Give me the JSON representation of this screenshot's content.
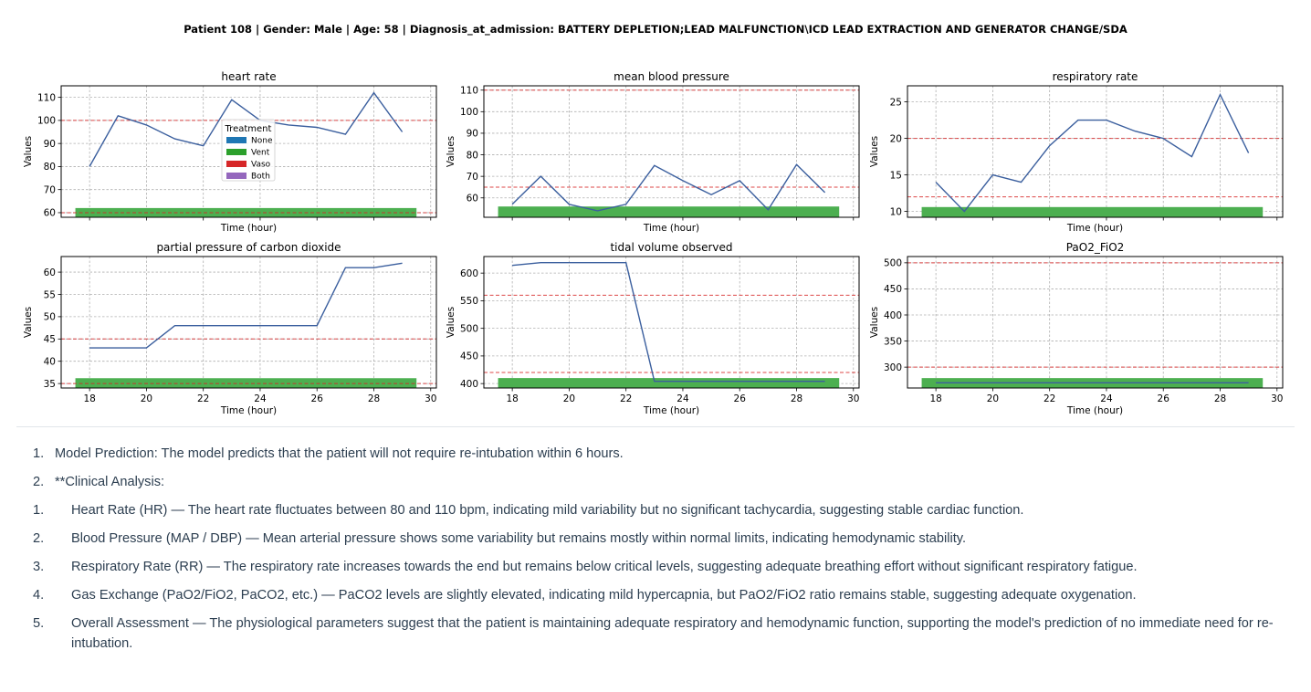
{
  "figure": {
    "title": "Patient 108 | Gender: Male | Age: 58 | Diagnosis_at_admission: BATTERY DEPLETION;LEAD MALFUNCTION\\ICD LEAD EXTRACTION AND GENERATOR CHANGE/SDA",
    "legend": {
      "title": "Treatment",
      "items": [
        {
          "label": "None",
          "color": "#1f77b4"
        },
        {
          "label": "Vent",
          "color": "#2ca02c"
        },
        {
          "label": "Vaso",
          "color": "#d62728"
        },
        {
          "label": "Both",
          "color": "#9467bd"
        }
      ]
    },
    "colors": {
      "line": "#3b5f9e",
      "threshold": "#d62728",
      "vent_band": "#4caf50"
    }
  },
  "chart_data": [
    {
      "type": "line",
      "title": "heart rate",
      "xlabel": "Time (hour)",
      "ylabel": "Values",
      "xlim": [
        17,
        30.2
      ],
      "ylim": [
        58,
        115
      ],
      "xticks": [
        18,
        20,
        22,
        24,
        26,
        28,
        30
      ],
      "yticks": [
        60,
        70,
        80,
        90,
        100,
        110
      ],
      "show_xticklabels": false,
      "x": [
        18,
        19,
        20,
        21,
        22,
        23,
        24,
        25,
        26,
        27,
        28,
        29
      ],
      "series": [
        {
          "values": [
            80,
            102,
            98,
            92,
            89,
            109,
            100,
            98,
            97,
            94,
            112,
            95
          ]
        }
      ],
      "thresholds": [
        60,
        100
      ],
      "treatment_band": {
        "treatment": "Vent",
        "x": [
          17.5,
          29.5
        ],
        "y": [
          58,
          62
        ]
      },
      "legend": true,
      "grid": true
    },
    {
      "type": "line",
      "title": "mean blood pressure",
      "xlabel": "Time (hour)",
      "ylabel": "Values",
      "xlim": [
        17,
        30.2
      ],
      "ylim": [
        51,
        112
      ],
      "xticks": [
        18,
        20,
        22,
        24,
        26,
        28,
        30
      ],
      "yticks": [
        60,
        70,
        80,
        90,
        100,
        110
      ],
      "show_xticklabels": false,
      "x": [
        18,
        19,
        20,
        21,
        22,
        23,
        24,
        25,
        26,
        27,
        28,
        29
      ],
      "series": [
        {
          "values": [
            57,
            70,
            57,
            54,
            57,
            75,
            68,
            61.5,
            68,
            54.5,
            75.5,
            62.5
          ]
        }
      ],
      "thresholds": [
        65,
        110
      ],
      "treatment_band": {
        "treatment": "Vent",
        "x": [
          17.5,
          29.5
        ],
        "y": [
          51,
          56
        ]
      },
      "legend": false,
      "grid": true
    },
    {
      "type": "line",
      "title": "respiratory rate",
      "xlabel": "Time (hour)",
      "ylabel": "Values",
      "xlim": [
        17,
        30.2
      ],
      "ylim": [
        9.2,
        27.2
      ],
      "xticks": [
        18,
        20,
        22,
        24,
        26,
        28,
        30
      ],
      "yticks": [
        10,
        15,
        20,
        25
      ],
      "show_xticklabels": false,
      "x": [
        18,
        19,
        20,
        21,
        22,
        23,
        24,
        25,
        26,
        27,
        28,
        29
      ],
      "series": [
        {
          "values": [
            14,
            10,
            15,
            14,
            19,
            22.5,
            22.5,
            21,
            20,
            17.5,
            26,
            18
          ]
        }
      ],
      "thresholds": [
        12,
        20
      ],
      "treatment_band": {
        "treatment": "Vent",
        "x": [
          17.5,
          29.5
        ],
        "y": [
          9.2,
          10.6
        ]
      },
      "legend": false,
      "grid": true
    },
    {
      "type": "line",
      "title": "partial pressure of carbon dioxide",
      "xlabel": "Time (hour)",
      "ylabel": "Values",
      "xlim": [
        17,
        30.2
      ],
      "ylim": [
        34,
        63.5
      ],
      "xticks": [
        18,
        20,
        22,
        24,
        26,
        28,
        30
      ],
      "yticks": [
        35,
        40,
        45,
        50,
        55,
        60
      ],
      "show_xticklabels": true,
      "x": [
        18,
        20,
        21,
        26,
        27,
        28,
        29
      ],
      "series": [
        {
          "values": [
            43,
            43,
            48,
            48,
            61,
            61,
            62
          ]
        }
      ],
      "thresholds": [
        35,
        45
      ],
      "treatment_band": {
        "treatment": "Vent",
        "x": [
          17.5,
          29.5
        ],
        "y": [
          34,
          36.2
        ]
      },
      "legend": false,
      "grid": true
    },
    {
      "type": "line",
      "title": "tidal volume observed",
      "xlabel": "Time (hour)",
      "ylabel": "Values",
      "xlim": [
        17,
        30.2
      ],
      "ylim": [
        392,
        630
      ],
      "xticks": [
        18,
        20,
        22,
        24,
        26,
        28,
        30
      ],
      "yticks": [
        400,
        450,
        500,
        550,
        600
      ],
      "show_xticklabels": true,
      "x": [
        18,
        19,
        20,
        21,
        22,
        23,
        24,
        25,
        26,
        27,
        28,
        29
      ],
      "series": [
        {
          "values": [
            614,
            619,
            619,
            619,
            619,
            404,
            404,
            404,
            404,
            404,
            404,
            404
          ]
        }
      ],
      "thresholds": [
        420,
        560
      ],
      "treatment_band": {
        "treatment": "Vent",
        "x": [
          17.5,
          29.5
        ],
        "y": [
          392,
          410
        ]
      },
      "legend": false,
      "grid": true
    },
    {
      "type": "line",
      "title": "PaO2_FiO2",
      "xlabel": "Time (hour)",
      "ylabel": "Values",
      "xlim": [
        17,
        30.2
      ],
      "ylim": [
        260,
        512
      ],
      "xticks": [
        18,
        20,
        22,
        24,
        26,
        28,
        30
      ],
      "yticks": [
        300,
        350,
        400,
        450,
        500
      ],
      "show_xticklabels": true,
      "x": [
        18,
        29
      ],
      "series": [
        {
          "values": [
            270,
            270
          ]
        }
      ],
      "thresholds": [
        300,
        500
      ],
      "treatment_band": {
        "treatment": "Vent",
        "x": [
          17.5,
          29.5
        ],
        "y": [
          260,
          279
        ]
      },
      "legend": false,
      "grid": true
    }
  ],
  "notes": [
    {
      "num": "1.",
      "text": "Model Prediction: The model predicts that the patient will not require re-intubation within 6 hours."
    },
    {
      "num": "2.",
      "text": "**Clinical Analysis:"
    },
    {
      "num": "1.",
      "text": "Heart Rate (HR) — The heart rate fluctuates between 80 and 110 bpm, indicating mild variability but no significant tachycardia, suggesting stable cardiac function."
    },
    {
      "num": "2.",
      "text": "Blood Pressure (MAP / DBP) — Mean arterial pressure shows some variability but remains mostly within normal limits, indicating hemodynamic stability."
    },
    {
      "num": "3.",
      "text": "Respiratory Rate (RR) — The respiratory rate increases towards the end but remains below critical levels, suggesting adequate breathing effort without significant respiratory fatigue."
    },
    {
      "num": "4.",
      "text": "Gas Exchange (PaO2/FiO2, PaCO2, etc.) — PaCO2 levels are slightly elevated, indicating mild hypercapnia, but PaO2/FiO2 ratio remains stable, suggesting adequate oxygenation."
    },
    {
      "num": "5.",
      "text": "Overall Assessment — The physiological parameters suggest that the patient is maintaining adequate respiratory and hemodynamic function, supporting the model's prediction of no immediate need for re-intubation."
    }
  ]
}
